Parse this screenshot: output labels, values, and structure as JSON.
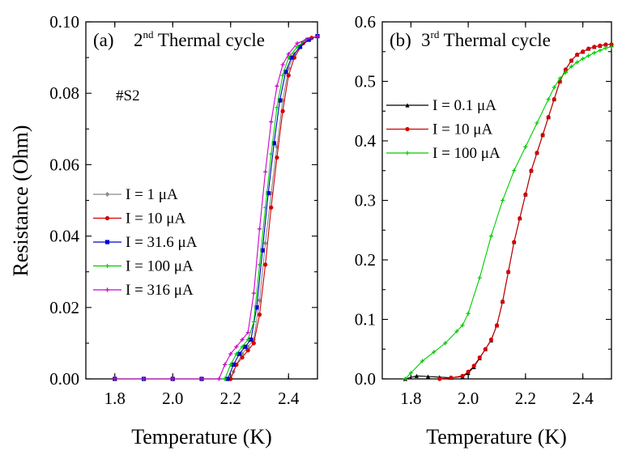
{
  "figure": {
    "ylabel": "Resistance (Ohm)",
    "xlabel": "Temperature (K)"
  },
  "chart_data": [
    {
      "type": "line",
      "panel": "(a)",
      "title_main": "2",
      "title_sup": "nd",
      "title_rest": " Thermal cycle",
      "annotation": "#S2",
      "xlim": [
        1.7,
        2.5
      ],
      "ylim": [
        0.0,
        0.1
      ],
      "xticks": [
        "1.8",
        "2.0",
        "2.2",
        "2.4"
      ],
      "yticks": [
        "0.00",
        "0.02",
        "0.04",
        "0.06",
        "0.08",
        "0.10"
      ],
      "legend_position": "center-left",
      "series": [
        {
          "name": "I = 1 μA",
          "color": "#8a8a8a",
          "marker": "diamond",
          "x": [
            1.8,
            1.9,
            2.0,
            2.1,
            2.2,
            2.21,
            2.22,
            2.24,
            2.26,
            2.28,
            2.3,
            2.32,
            2.34,
            2.36,
            2.38,
            2.4,
            2.42,
            2.45,
            2.48,
            2.5
          ],
          "y": [
            0.0,
            0.0,
            0.0,
            0.0,
            0.0,
            0.002,
            0.004,
            0.007,
            0.009,
            0.011,
            0.022,
            0.038,
            0.052,
            0.065,
            0.078,
            0.087,
            0.091,
            0.094,
            0.0955,
            0.096
          ]
        },
        {
          "name": "I = 10 μA",
          "color": "#d40000",
          "marker": "circle",
          "x": [
            1.8,
            1.9,
            2.0,
            2.1,
            2.2,
            2.22,
            2.24,
            2.26,
            2.28,
            2.3,
            2.32,
            2.34,
            2.36,
            2.38,
            2.4,
            2.42,
            2.45,
            2.48,
            2.5
          ],
          "y": [
            0.0,
            0.0,
            0.0,
            0.0,
            0.0,
            0.004,
            0.006,
            0.008,
            0.01,
            0.018,
            0.032,
            0.048,
            0.062,
            0.075,
            0.085,
            0.09,
            0.094,
            0.0955,
            0.096
          ]
        },
        {
          "name": "I = 31.6 μA",
          "color": "#0000cc",
          "marker": "square",
          "x": [
            1.8,
            1.9,
            2.0,
            2.1,
            2.19,
            2.21,
            2.23,
            2.25,
            2.27,
            2.29,
            2.31,
            2.33,
            2.35,
            2.37,
            2.39,
            2.41,
            2.44,
            2.47,
            2.5
          ],
          "y": [
            0.0,
            0.0,
            0.0,
            0.0,
            0.0,
            0.004,
            0.007,
            0.009,
            0.011,
            0.02,
            0.036,
            0.052,
            0.066,
            0.078,
            0.086,
            0.09,
            0.093,
            0.095,
            0.096
          ]
        },
        {
          "name": "I = 100 μA",
          "color": "#00cc00",
          "marker": "plus",
          "x": [
            1.8,
            1.9,
            2.0,
            2.1,
            2.18,
            2.2,
            2.22,
            2.24,
            2.26,
            2.28,
            2.3,
            2.32,
            2.34,
            2.36,
            2.38,
            2.4,
            2.43,
            2.46,
            2.5
          ],
          "y": [
            0.0,
            0.0,
            0.0,
            0.0,
            0.0,
            0.004,
            0.007,
            0.009,
            0.011,
            0.016,
            0.032,
            0.048,
            0.063,
            0.076,
            0.085,
            0.09,
            0.093,
            0.095,
            0.096
          ]
        },
        {
          "name": "I = 316 μA",
          "color": "#cc00cc",
          "marker": "plus",
          "x": [
            1.8,
            1.9,
            2.0,
            2.1,
            2.16,
            2.18,
            2.2,
            2.22,
            2.24,
            2.26,
            2.28,
            2.3,
            2.32,
            2.34,
            2.36,
            2.38,
            2.4,
            2.43,
            2.46,
            2.5
          ],
          "y": [
            0.0,
            0.0,
            0.0,
            0.0,
            0.0,
            0.004,
            0.007,
            0.009,
            0.011,
            0.013,
            0.024,
            0.042,
            0.058,
            0.072,
            0.082,
            0.088,
            0.091,
            0.094,
            0.095,
            0.096
          ]
        }
      ]
    },
    {
      "type": "line",
      "panel": "(b)",
      "title_main": "3",
      "title_sup": "rd",
      "title_rest": " Thermal cycle",
      "xlim": [
        1.7,
        2.5
      ],
      "ylim": [
        0.0,
        0.6
      ],
      "xticks": [
        "1.8",
        "2.0",
        "2.2",
        "2.4"
      ],
      "yticks": [
        "0.0",
        "0.1",
        "0.2",
        "0.3",
        "0.4",
        "0.5",
        "0.6"
      ],
      "legend_position": "top-left",
      "series": [
        {
          "name": "I = 0.1 μA",
          "color": "#000000",
          "marker": "triangle",
          "x": [
            1.78,
            1.82,
            1.86,
            1.9,
            1.94,
            1.98,
            2.0,
            2.02,
            2.04,
            2.06,
            2.08,
            2.1,
            2.12,
            2.14,
            2.16,
            2.18,
            2.2,
            2.22,
            2.24,
            2.26,
            2.28,
            2.3,
            2.32,
            2.34,
            2.36,
            2.38,
            2.4,
            2.42,
            2.44,
            2.46,
            2.48,
            2.5
          ],
          "y": [
            0.0,
            0.005,
            0.004,
            0.003,
            0.002,
            0.004,
            0.01,
            0.02,
            0.035,
            0.05,
            0.065,
            0.09,
            0.13,
            0.18,
            0.23,
            0.27,
            0.31,
            0.35,
            0.38,
            0.41,
            0.44,
            0.47,
            0.5,
            0.52,
            0.535,
            0.545,
            0.55,
            0.555,
            0.558,
            0.56,
            0.562,
            0.562
          ]
        },
        {
          "name": "I = 10 μA",
          "color": "#d40000",
          "marker": "circle",
          "x": [
            1.9,
            1.94,
            1.98,
            2.0,
            2.02,
            2.04,
            2.06,
            2.08,
            2.1,
            2.12,
            2.14,
            2.16,
            2.18,
            2.2,
            2.22,
            2.24,
            2.26,
            2.28,
            2.3,
            2.32,
            2.34,
            2.36,
            2.38,
            2.4,
            2.42,
            2.44,
            2.46,
            2.48,
            2.5
          ],
          "y": [
            0.0,
            0.002,
            0.005,
            0.012,
            0.022,
            0.036,
            0.05,
            0.066,
            0.09,
            0.13,
            0.18,
            0.23,
            0.27,
            0.31,
            0.35,
            0.38,
            0.41,
            0.44,
            0.47,
            0.5,
            0.52,
            0.535,
            0.545,
            0.55,
            0.555,
            0.558,
            0.56,
            0.562,
            0.562
          ]
        },
        {
          "name": "I = 100 μA",
          "color": "#00cc00",
          "marker": "plus",
          "x": [
            1.78,
            1.8,
            1.84,
            1.88,
            1.92,
            1.96,
            1.98,
            2.0,
            2.04,
            2.08,
            2.12,
            2.16,
            2.2,
            2.24,
            2.28,
            2.3,
            2.32,
            2.34,
            2.36,
            2.38,
            2.4,
            2.42,
            2.44,
            2.46,
            2.48,
            2.5
          ],
          "y": [
            0.0,
            0.01,
            0.03,
            0.045,
            0.06,
            0.08,
            0.09,
            0.11,
            0.17,
            0.24,
            0.3,
            0.35,
            0.39,
            0.43,
            0.47,
            0.49,
            0.505,
            0.515,
            0.525,
            0.532,
            0.538,
            0.543,
            0.548,
            0.552,
            0.556,
            0.558
          ]
        }
      ]
    }
  ]
}
